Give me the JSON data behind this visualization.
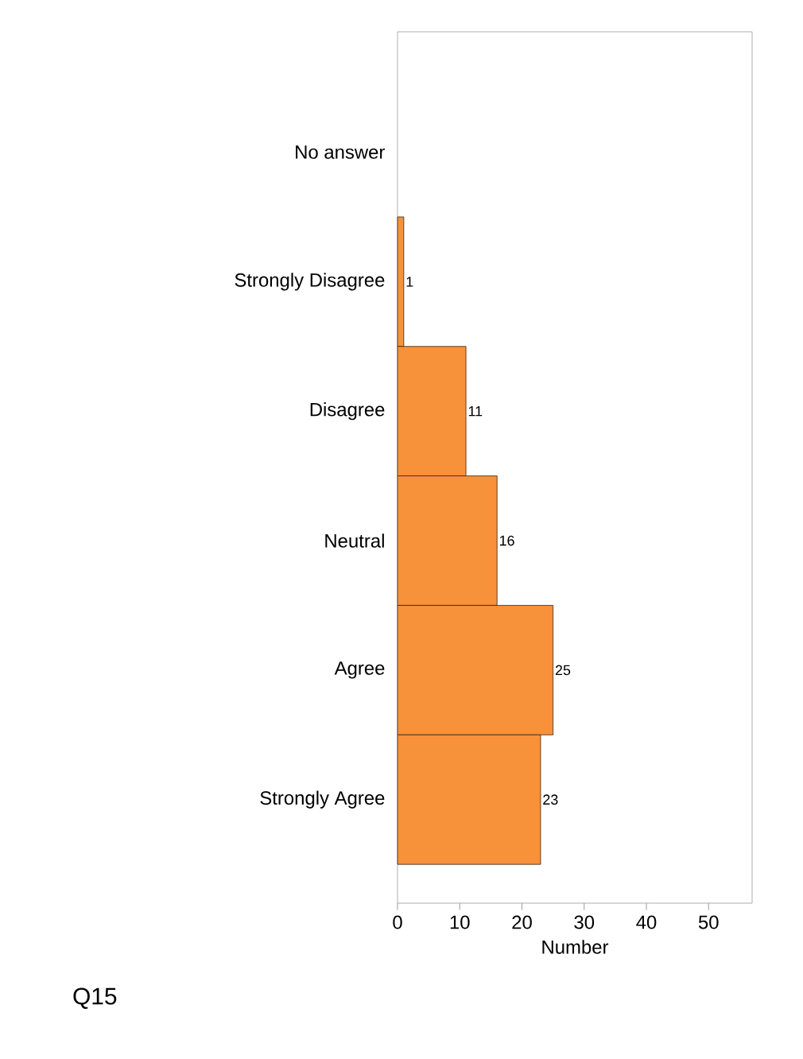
{
  "chart_data": {
    "type": "bar",
    "orientation": "horizontal",
    "categories": [
      "No answer",
      "Strongly Disagree",
      "Disagree",
      "Neutral",
      "Agree",
      "Strongly Agree"
    ],
    "values": [
      0,
      1,
      11,
      16,
      25,
      23
    ],
    "value_labels": [
      null,
      "1",
      "11",
      "16",
      "25",
      "23"
    ],
    "color": "#f7913a",
    "xlim": [
      0,
      57
    ],
    "xticks": [
      0,
      10,
      20,
      30,
      40,
      50
    ],
    "xlabel": "Number",
    "annotations": [
      "Q15"
    ]
  }
}
